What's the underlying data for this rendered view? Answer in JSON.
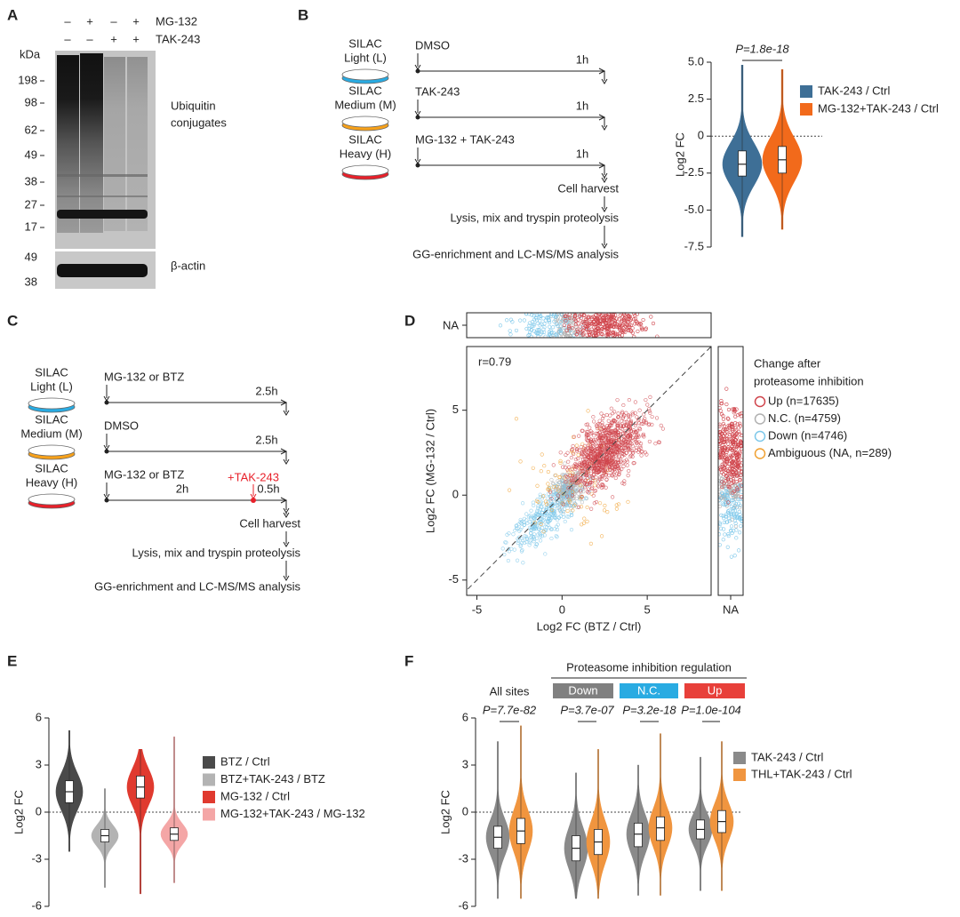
{
  "panel_labels": [
    "A",
    "B",
    "C",
    "D",
    "E",
    "F"
  ],
  "panel_a": {
    "treatments": [
      "MG-132",
      "TAK-243"
    ],
    "lanes": [
      [
        "–",
        "+",
        "–",
        "+"
      ],
      [
        "–",
        "–",
        "+",
        "+"
      ]
    ],
    "kda_label": "kDa",
    "markers": [
      198,
      98,
      62,
      49,
      38,
      27,
      17
    ],
    "band_label": [
      "Ubiquitin",
      "conjugates"
    ],
    "actin_markers": [
      49,
      38
    ],
    "actin_label": "β-actin"
  },
  "schematic_b": {
    "dishes": [
      {
        "lines": [
          "SILAC",
          "Light (L)"
        ],
        "color": "#29abe2"
      },
      {
        "lines": [
          "SILAC",
          "Medium (M)"
        ],
        "color": "#f7a11a"
      },
      {
        "lines": [
          "SILAC",
          "Heavy (H)"
        ],
        "color": "#e8202a"
      }
    ],
    "treatments": [
      "DMSO",
      "TAK-243",
      "MG-132 + TAK-243"
    ],
    "times": [
      "1h",
      "1h",
      "1h"
    ],
    "steps": [
      "Cell harvest",
      "Lysis, mix and tryspin proteolysis",
      "GG-enrichment and  LC-MS/MS analysis"
    ]
  },
  "schematic_c": {
    "dishes": [
      {
        "lines": [
          "SILAC",
          "Light (L)"
        ],
        "color": "#29abe2"
      },
      {
        "lines": [
          "SILAC",
          "Medium (M)"
        ],
        "color": "#f7a11a"
      },
      {
        "lines": [
          "SILAC",
          "Heavy (H)"
        ],
        "color": "#e8202a"
      }
    ],
    "treatments": [
      "MG-132 or BTZ",
      "DMSO",
      "MG-132 or BTZ"
    ],
    "times": [
      "2.5h",
      "2.5h",
      "0.5h"
    ],
    "first_time": "2h",
    "addition": "+TAK-243",
    "addition_color": "#e8202a",
    "steps": [
      "Cell harvest",
      "Lysis, mix and tryspin proteolysis",
      "GG-enrichment and  LC-MS/MS analysis"
    ]
  },
  "chart_data": [
    {
      "type": "violin",
      "ylabel": "Log2 FC",
      "ylim": [
        -7.5,
        5
      ],
      "yticks": [
        {
          "value": 5,
          "label": "5.0"
        },
        2.5,
        0,
        -2.5,
        {
          "value": -5,
          "label": "-5.0"
        },
        -7.5
      ],
      "categories": [
        null
      ],
      "annotations": [
        "P=1.8e-18"
      ],
      "series": [
        {
          "name": "TAK-243 / Ctrl",
          "color": "#3e6f96",
          "median": [
            -1.9
          ],
          "q1": [
            -2.7
          ],
          "q3": [
            -1.0
          ],
          "min": [
            -6.8
          ],
          "max": [
            4.8
          ]
        },
        {
          "name": "MG-132+TAK-243 / Ctrl",
          "color": "#f26a1b",
          "median": [
            -1.6
          ],
          "q1": [
            -2.5
          ],
          "q3": [
            -0.7
          ],
          "min": [
            -6.3
          ],
          "max": [
            4.5
          ]
        }
      ]
    },
    {
      "type": "scatter",
      "xlabel": "Log2 FC (BTZ / Ctrl)",
      "ylabel": "Log2 FC (MG-132 / Ctrl)",
      "xlim": [
        -5.6,
        8.75
      ],
      "ylim": [
        -5.9,
        8.75
      ],
      "xticks": [
        -5,
        0,
        5
      ],
      "yticks": [
        -5,
        0,
        5
      ],
      "na_label": "NA",
      "annotation": "r=0.79",
      "legend_title": [
        "Change after",
        "proteasome inhibition"
      ],
      "series": [
        {
          "name": "Up (n=17635)",
          "color": "#d0454c",
          "center": [
            2.6,
            2.6
          ],
          "spread": [
            1.1,
            1.1
          ]
        },
        {
          "name": "N.C. (n=4759)",
          "color": "#b0b0b0",
          "center": [
            0.4,
            0.3
          ],
          "spread": [
            0.45,
            0.5
          ]
        },
        {
          "name": "Down (n=4746)",
          "color": "#7ec8ea",
          "center": [
            -1.0,
            -1.2
          ],
          "spread": [
            1.0,
            1.0
          ]
        },
        {
          "name": "Ambiguous (NA, n=289)",
          "color": "#f0a030",
          "center": [
            0.5,
            0.6
          ],
          "spread": [
            1.6,
            1.6
          ]
        }
      ]
    },
    {
      "type": "violin",
      "ylabel": "Log2 FC",
      "ylim": [
        -6,
        6
      ],
      "yticks": [
        6,
        3,
        0,
        -3,
        -6
      ],
      "categories": [
        null
      ],
      "series": [
        {
          "name": "BTZ / Ctrl",
          "color": "#4a4a4a",
          "median": [
            1.3
          ],
          "q1": [
            0.6
          ],
          "q3": [
            2.0
          ],
          "min": [
            -2.5
          ],
          "max": [
            5.2
          ]
        },
        {
          "name": "BTZ+TAK-243 / BTZ",
          "color": "#b3b3b3",
          "median": [
            -1.5
          ],
          "q1": [
            -1.9
          ],
          "q3": [
            -1.1
          ],
          "min": [
            -4.8
          ],
          "max": [
            1.5
          ]
        },
        {
          "name": "MG-132 / Ctrl",
          "color": "#e03a2f",
          "median": [
            1.6
          ],
          "q1": [
            0.9
          ],
          "q3": [
            2.3
          ],
          "min": [
            -5.2
          ],
          "max": [
            4.0
          ]
        },
        {
          "name": "MG-132+TAK-243 / MG-132",
          "color": "#f4a6a6",
          "median": [
            -1.4
          ],
          "q1": [
            -1.8
          ],
          "q3": [
            -1.0
          ],
          "min": [
            -4.5
          ],
          "max": [
            4.8
          ]
        }
      ]
    },
    {
      "type": "violin",
      "title": "Proteasome inhibition regulation",
      "ylabel": "Log2 FC",
      "ylim": [
        -6,
        6
      ],
      "yticks": [
        6,
        3,
        0,
        -3,
        -6
      ],
      "categories": [
        "All sites",
        "Down",
        "N.C.",
        "Up"
      ],
      "category_colors": [
        null,
        "#808080",
        "#29abe2",
        "#e8403a"
      ],
      "annotations": [
        "P=7.7e-82",
        "P=3.7e-07",
        "P=3.2e-18",
        "P=1.0e-104"
      ],
      "series": [
        {
          "name": "TAK-243 / Ctrl",
          "color": "#8a8a8a",
          "median": [
            -1.6,
            -2.3,
            -1.4,
            -1.1
          ],
          "q1": [
            -2.3,
            -3.1,
            -2.2,
            -1.7
          ],
          "q3": [
            -0.9,
            -1.5,
            -0.7,
            -0.5
          ],
          "min": [
            -5.5,
            -5.5,
            -5.3,
            -5.0
          ],
          "max": [
            4.5,
            2.5,
            3.0,
            3.5
          ]
        },
        {
          "name": "THL+TAK-243 / Ctrl",
          "color": "#f0953f",
          "median": [
            -1.2,
            -1.9,
            -1.0,
            -0.6
          ],
          "q1": [
            -2.0,
            -2.7,
            -1.8,
            -1.3
          ],
          "q3": [
            -0.4,
            -1.1,
            -0.3,
            0.1
          ],
          "min": [
            -5.5,
            -5.5,
            -5.3,
            -5.0
          ],
          "max": [
            5.5,
            4.0,
            5.0,
            4.5
          ]
        }
      ]
    }
  ]
}
